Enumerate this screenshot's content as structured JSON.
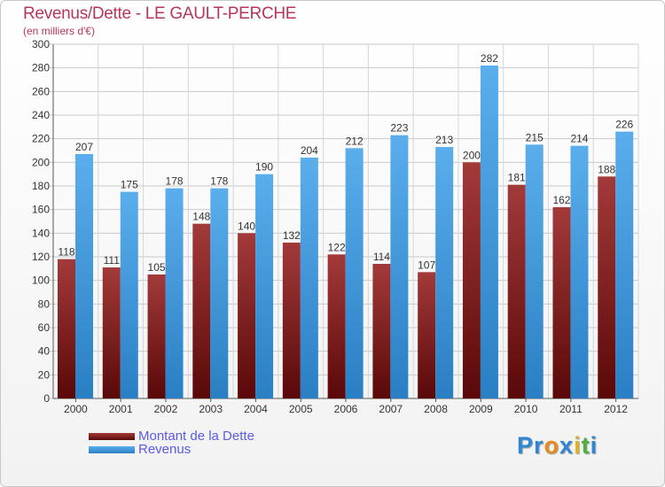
{
  "chart_data": {
    "type": "bar",
    "title": "Revenus/Dette - LE GAULT-PERCHE",
    "subtitle": "(en milliers d'€)",
    "categories": [
      "2000",
      "2001",
      "2002",
      "2003",
      "2004",
      "2005",
      "2006",
      "2007",
      "2008",
      "2009",
      "2010",
      "2011",
      "2012"
    ],
    "series": [
      {
        "name": "Montant de la Dette",
        "color": "#8b1a1a",
        "values": [
          118,
          111,
          105,
          148,
          140,
          132,
          122,
          114,
          107,
          200,
          181,
          162,
          188
        ]
      },
      {
        "name": "Revenus",
        "color": "#3a9be2",
        "values": [
          207,
          175,
          178,
          178,
          190,
          204,
          212,
          223,
          213,
          282,
          215,
          214,
          226
        ]
      }
    ],
    "ylim": [
      0,
      300
    ],
    "yticks": [
      0,
      20,
      40,
      60,
      80,
      100,
      120,
      140,
      160,
      180,
      200,
      220,
      240,
      260,
      280,
      300
    ],
    "grid": true,
    "legend_position": "bottom-left"
  },
  "logo": {
    "letters": [
      {
        "ch": "P",
        "color": "#2f86d6"
      },
      {
        "ch": "r",
        "color": "#2f86d6"
      },
      {
        "ch": "o",
        "color": "#e98a1f"
      },
      {
        "ch": "x",
        "color": "#2f86d6"
      },
      {
        "ch": "i",
        "color": "#e0b31c"
      },
      {
        "ch": "t",
        "color": "#4caf3a"
      },
      {
        "ch": "i",
        "color": "#2f86d6"
      }
    ]
  }
}
